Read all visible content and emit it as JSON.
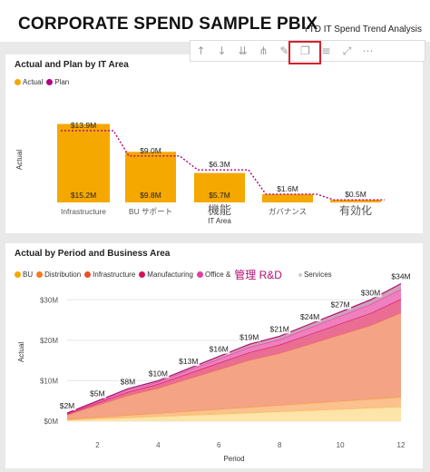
{
  "header": {
    "title": "CORPORATE SPEND SAMPLE PBIX",
    "subtitle": "YTD IT Spend Trend Analysis"
  },
  "toolbar": [
    {
      "icon": "arrow-up-icon",
      "glyph": "↑"
    },
    {
      "icon": "arrow-down-icon",
      "glyph": "↓"
    },
    {
      "icon": "drill-down-all-icon",
      "glyph": "⇊"
    },
    {
      "icon": "expand-hierarchy-icon",
      "glyph": "⋔"
    },
    {
      "icon": "pin-visual-icon",
      "glyph": "✎"
    },
    {
      "icon": "copy-visual-icon",
      "glyph": "❐"
    },
    {
      "icon": "filter-icon",
      "glyph": "≡"
    },
    {
      "icon": "focus-mode-icon",
      "glyph": "⤢"
    },
    {
      "icon": "more-options-icon",
      "glyph": "⋯"
    }
  ],
  "chart1": {
    "title": "Actual and Plan by IT Area",
    "legend": [
      {
        "label": "Actual",
        "color": "#f5a800"
      },
      {
        "label": "Plan",
        "color": "#b5007f"
      }
    ],
    "ylabel": "Actual",
    "xlabel": "IT Area"
  },
  "chart2": {
    "title": "Actual by Period and Business Area",
    "legend": [
      {
        "label": "BU",
        "color": "#f5a800"
      },
      {
        "label": "Distribution",
        "color": "#f47a20"
      },
      {
        "label": "Infrastructure",
        "color": "#e8502a"
      },
      {
        "label": "Manufacturing",
        "color": "#d4145a"
      },
      {
        "label": "Office &",
        "color": "#e040a0"
      },
      {
        "label": "管理 R&D",
        "color": ""
      },
      {
        "label": "Services",
        "color": "#cfcfcf"
      }
    ],
    "ylabel": "Actual",
    "xlabel": "Period"
  },
  "chart_data": [
    {
      "type": "bar",
      "title": "Actual and Plan by IT Area",
      "categories": [
        "Infrastructure",
        "BU サポート",
        "機能",
        "ガバナンス",
        "有効化"
      ],
      "series": [
        {
          "name": "Actual",
          "values": [
            15.2,
            9.8,
            5.7,
            1.6,
            0.5
          ],
          "labels": [
            "$15.2M",
            "$9.8M",
            "$5.7M",
            "",
            ""
          ]
        },
        {
          "name": "Plan",
          "values": [
            13.9,
            9.0,
            6.3,
            1.6,
            0.5
          ],
          "labels": [
            "$13.9M",
            "$9.0M",
            "$6.3M",
            "$1.6M",
            "$0.5M"
          ]
        }
      ],
      "xlabel": "IT Area",
      "ylabel": "Actual",
      "ylim": [
        0,
        16
      ],
      "grid": false,
      "legend_position": "top-left"
    },
    {
      "type": "area",
      "title": "Actual by Period and Business Area",
      "x": [
        1,
        2,
        3,
        4,
        5,
        6,
        7,
        8,
        9,
        10,
        11,
        12
      ],
      "total_labels": [
        "$2M",
        "$5M",
        "$8M",
        "$10M",
        "$13M",
        "$16M",
        "$19M",
        "$21M",
        "$24M",
        "$27M",
        "$30M",
        "$34M"
      ],
      "series": [
        {
          "name": "BU",
          "values": [
            0.3,
            0.6,
            0.9,
            1.2,
            1.5,
            1.8,
            2.1,
            2.4,
            2.7,
            3.0,
            3.3,
            3.6
          ]
        },
        {
          "name": "Distribution",
          "values": [
            0.2,
            0.4,
            0.6,
            0.8,
            1.0,
            1.2,
            1.4,
            1.6,
            1.8,
            2.0,
            2.2,
            2.4
          ]
        },
        {
          "name": "Infrastructure",
          "values": [
            1.1,
            3.0,
            4.9,
            6.2,
            8.0,
            9.8,
            11.6,
            12.8,
            14.6,
            16.4,
            18.2,
            20.8
          ]
        },
        {
          "name": "Manufacturing",
          "values": [
            0.2,
            0.5,
            0.8,
            1.0,
            1.3,
            1.6,
            1.9,
            2.1,
            2.4,
            2.7,
            3.0,
            3.4
          ]
        },
        {
          "name": "Office &",
          "values": [
            0.1,
            0.3,
            0.5,
            0.5,
            0.8,
            1.0,
            1.3,
            1.3,
            1.6,
            1.9,
            2.2,
            2.4
          ]
        },
        {
          "name": "Services",
          "values": [
            0.1,
            0.2,
            0.3,
            0.3,
            0.4,
            0.6,
            0.7,
            0.8,
            0.9,
            1.0,
            1.1,
            1.4
          ]
        }
      ],
      "yticks": [
        "$0M",
        "$10M",
        "$20M",
        "$30M"
      ],
      "xticks": [
        "2",
        "4",
        "6",
        "8",
        "10",
        "12"
      ],
      "xlabel": "Period",
      "ylabel": "Actual",
      "ylim": [
        0,
        35
      ],
      "xlim": [
        1,
        12
      ],
      "grid": true,
      "legend_position": "top-left"
    }
  ]
}
